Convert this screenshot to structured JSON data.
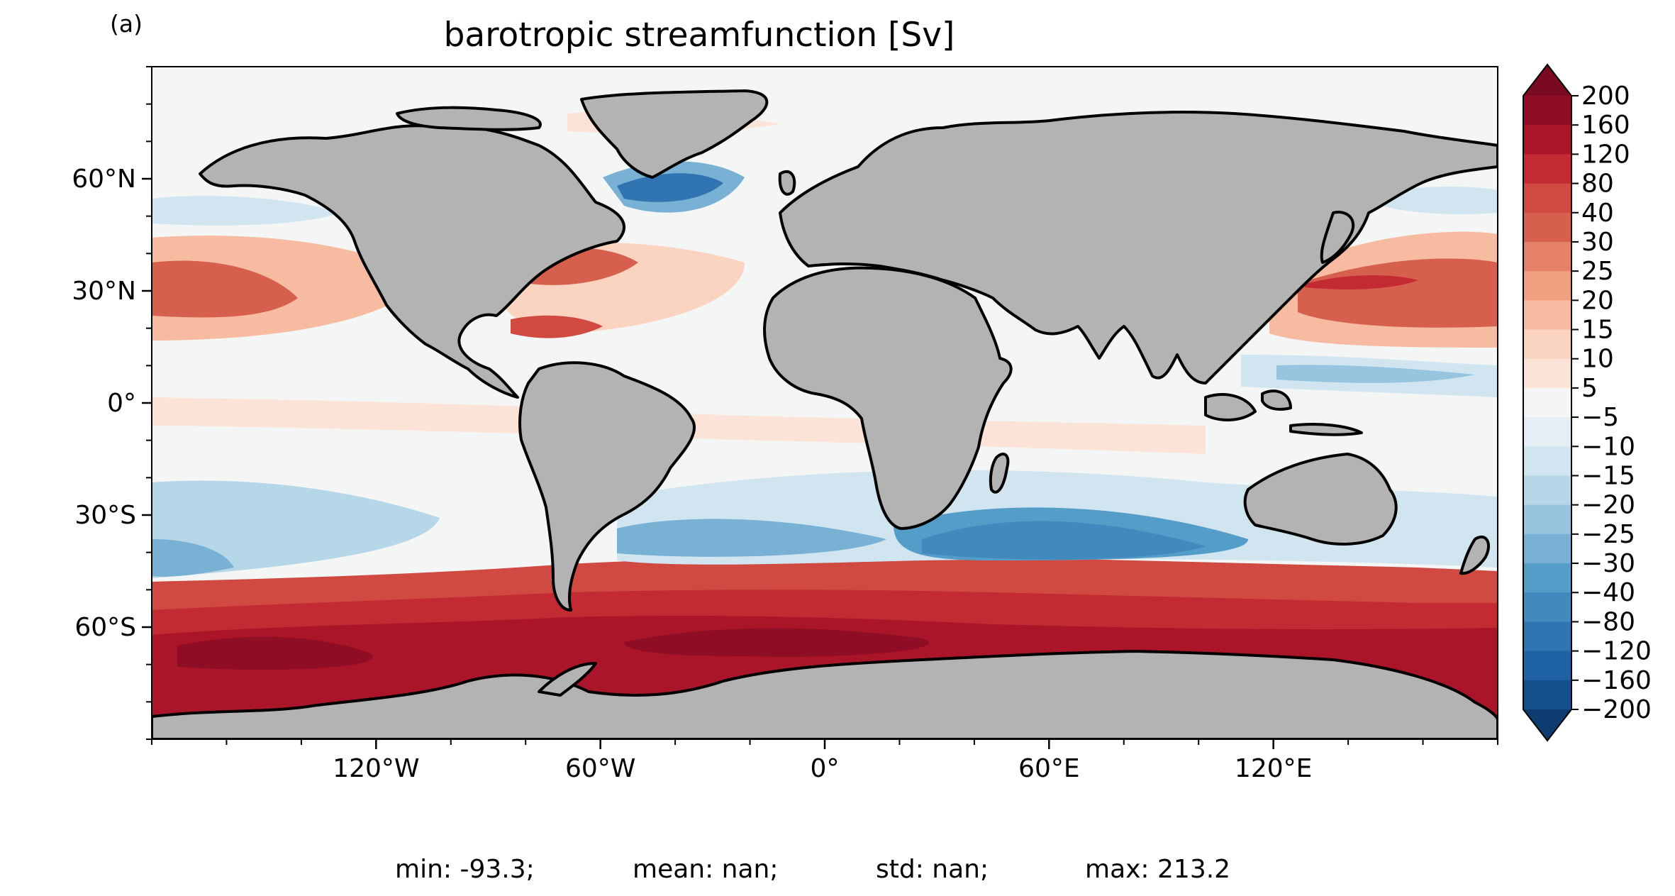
{
  "panel_label": "(a)",
  "title": "barotropic streamfunction [Sv]",
  "stats": {
    "min": "min: -93.3;",
    "mean": "mean: nan;",
    "std": "std: nan;",
    "max": "max: 213.2"
  },
  "map": {
    "projection": "PlateCarree",
    "lon_range": [
      -180,
      180
    ],
    "lat_range": [
      -90,
      90
    ],
    "land_color": "#b3b3b3",
    "coastline_color": "#000000",
    "x_ticks": [
      {
        "lon": -120,
        "label": "120°W"
      },
      {
        "lon": -60,
        "label": "60°W"
      },
      {
        "lon": 0,
        "label": "0°"
      },
      {
        "lon": 60,
        "label": "60°E"
      },
      {
        "lon": 120,
        "label": "120°E"
      }
    ],
    "y_ticks": [
      {
        "lat": 60,
        "label": "60°N"
      },
      {
        "lat": 30,
        "label": "30°N"
      },
      {
        "lat": 0,
        "label": "0°"
      },
      {
        "lat": -30,
        "label": "30°S"
      },
      {
        "lat": -60,
        "label": "60°S"
      }
    ]
  },
  "colorbar": {
    "cmap": "RdBu_r",
    "extend": "both",
    "levels": [
      "200",
      "160",
      "120",
      "80",
      "40",
      "30",
      "25",
      "20",
      "15",
      "10",
      "5",
      "−5",
      "−10",
      "−15",
      "−20",
      "−25",
      "−30",
      "−40",
      "−80",
      "−120",
      "−160",
      "−200"
    ],
    "colors": [
      "#8f0d25",
      "#aa1529",
      "#c32a32",
      "#d04a42",
      "#d6604d",
      "#e48168",
      "#f0a081",
      "#f6bba1",
      "#fad4c0",
      "#fbe4d7",
      "#f4f6f6",
      "#e4eef4",
      "#d1e5f0",
      "#b6d7e8",
      "#97c4df",
      "#78b1d4",
      "#559dc9",
      "#4289bd",
      "#3075b2",
      "#1f62a6",
      "#14508c"
    ],
    "top_extend_color": "#7a0a20",
    "bottom_extend_color": "#0d3d70"
  }
}
